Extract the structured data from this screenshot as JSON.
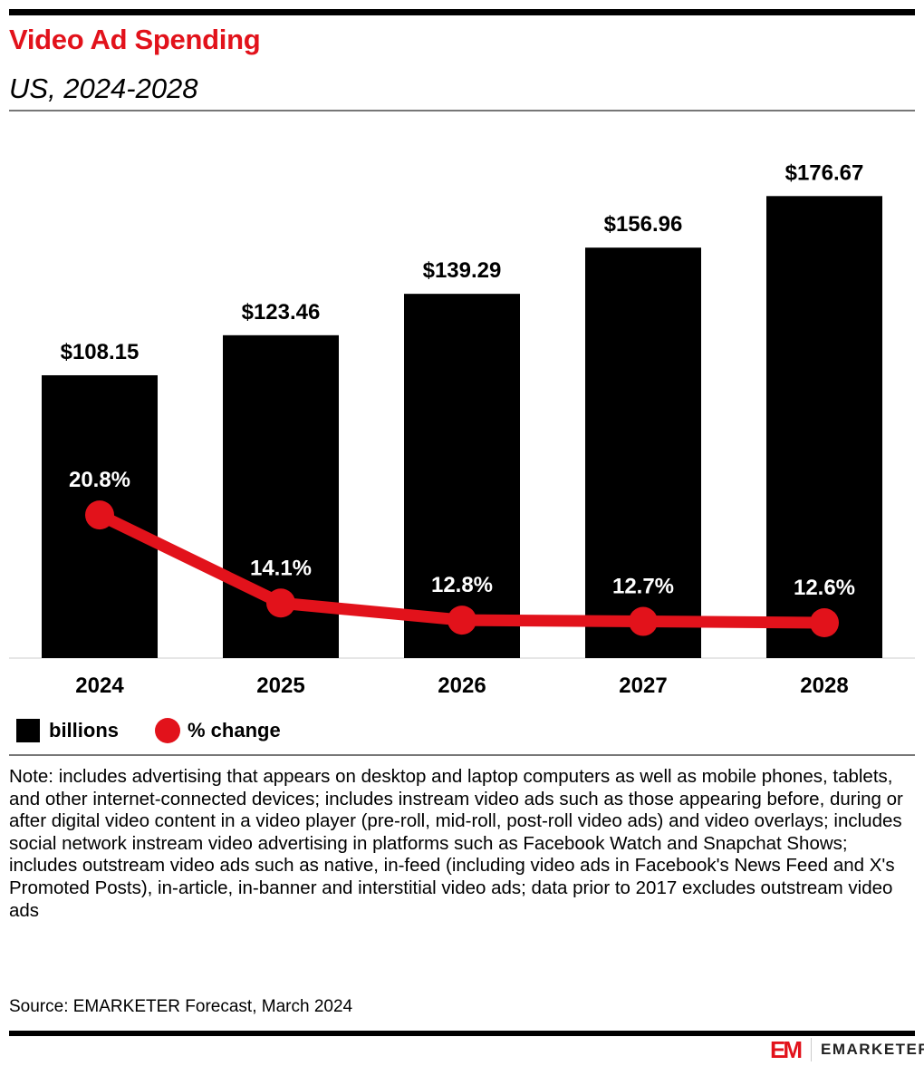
{
  "header": {
    "title": "Video Ad Spending",
    "subtitle": "US, 2024-2028"
  },
  "chart_data": {
    "type": "bar+line",
    "categories": [
      "2024",
      "2025",
      "2026",
      "2027",
      "2028"
    ],
    "series": [
      {
        "name": "billions",
        "type": "bar",
        "values": [
          108.15,
          123.46,
          139.29,
          156.96,
          176.67
        ],
        "labels": [
          "$108.15",
          "$123.46",
          "$139.29",
          "$156.96",
          "$176.67"
        ],
        "color": "#000000"
      },
      {
        "name": "% change",
        "type": "line",
        "values": [
          20.8,
          14.1,
          12.8,
          12.7,
          12.6
        ],
        "labels": [
          "20.8%",
          "14.1%",
          "12.8%",
          "12.7%",
          "12.6%"
        ],
        "color": "#e2121b"
      }
    ],
    "legend": "bottom-left",
    "grid": false
  },
  "legend": {
    "bars": "billions",
    "line": "% change"
  },
  "note": "Note: includes advertising that appears on desktop and laptop computers as well as mobile phones, tablets, and other internet-connected devices; includes instream video ads such as those appearing before, during or after digital video content in a video player (pre-roll, mid-roll, post-roll video ads) and video overlays; includes social network instream video advertising in platforms such as Facebook Watch and Snapchat Shows; includes outstream video ads such as native, in-feed (including video ads in Facebook's News Feed and X's Promoted Posts), in-article, in-banner and interstitial video ads; data prior to 2017 excludes outstream video ads",
  "source": "Source: EMARKETER Forecast, March 2024",
  "logo": {
    "mark": "EM",
    "text": "EMARKETER"
  }
}
